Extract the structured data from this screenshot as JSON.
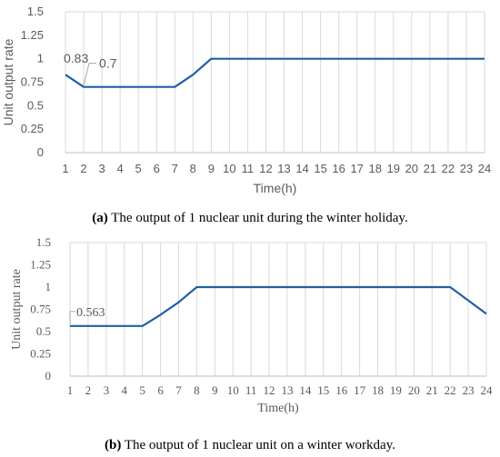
{
  "chart_data": [
    {
      "type": "line",
      "panel": "a",
      "title": "",
      "xlabel": "Time(h)",
      "ylabel": "Unit output rate",
      "x": [
        1,
        2,
        3,
        4,
        5,
        6,
        7,
        8,
        9,
        10,
        11,
        12,
        13,
        14,
        15,
        16,
        17,
        18,
        19,
        20,
        21,
        22,
        23,
        24
      ],
      "series": [
        {
          "values": [
            0.83,
            0.7,
            0.7,
            0.7,
            0.7,
            0.7,
            0.7,
            0.83,
            1,
            1,
            1,
            1,
            1,
            1,
            1,
            1,
            1,
            1,
            1,
            1,
            1,
            1,
            1,
            1
          ]
        }
      ],
      "ylim": [
        0,
        1.5
      ],
      "yticks": [
        "0",
        "0.25",
        "0.5",
        "0.75",
        "1",
        "1.25",
        "1.5"
      ],
      "grid": "vertical",
      "annotations": [
        {
          "text": "0.83",
          "x": 1,
          "y": 0.83
        },
        {
          "text": "0.7",
          "x": 2,
          "y": 0.7
        }
      ],
      "caption_label": "(a)",
      "caption_text": " The output of 1 nuclear unit during the winter holiday.",
      "line_color": "#1f5fa6",
      "grid_color": "#d9d9d9"
    },
    {
      "type": "line",
      "panel": "b",
      "title": "",
      "xlabel": "Time(h)",
      "ylabel": "Unit output rate",
      "x": [
        1,
        2,
        3,
        4,
        5,
        6,
        7,
        8,
        9,
        10,
        11,
        12,
        13,
        14,
        15,
        16,
        17,
        18,
        19,
        20,
        21,
        22,
        23,
        24
      ],
      "series": [
        {
          "values": [
            0.563,
            0.563,
            0.563,
            0.563,
            0.563,
            0.69,
            0.83,
            1,
            1,
            1,
            1,
            1,
            1,
            1,
            1,
            1,
            1,
            1,
            1,
            1,
            1,
            1,
            0.85,
            0.7
          ]
        }
      ],
      "ylim": [
        0,
        1.5
      ],
      "yticks": [
        "0",
        "0.25",
        "0.5",
        "0.75",
        "1",
        "1.25",
        "1.5"
      ],
      "grid": "vertical",
      "annotations": [
        {
          "text": "0.563",
          "x": 1,
          "y": 0.563
        }
      ],
      "caption_label": "(b)",
      "caption_text": " The output of 1 nuclear unit on a winter workday.",
      "line_color": "#1f5fa6",
      "grid_color": "#d9d9d9"
    }
  ]
}
